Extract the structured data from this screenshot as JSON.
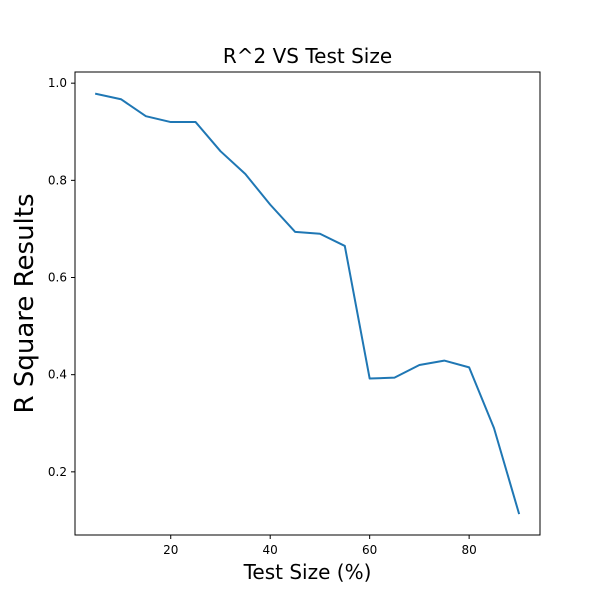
{
  "chart_data": {
    "type": "line",
    "title": "R^2 VS Test Size",
    "xlabel": "Test Size (%)",
    "ylabel": "R Square Results",
    "xlim": [
      0.75,
      94.25
    ],
    "ylim": [
      0.07,
      1.023
    ],
    "x_ticks": [
      20,
      40,
      60,
      80
    ],
    "y_ticks": [
      0.2,
      0.4,
      0.6,
      0.8,
      1.0
    ],
    "x_tick_labels": [
      "20",
      "40",
      "60",
      "80"
    ],
    "y_tick_labels": [
      "0.2",
      "0.4",
      "0.6",
      "0.8",
      "1.0"
    ],
    "grid": false,
    "series": [
      {
        "color": "#1f77b4",
        "x": [
          5,
          10,
          15,
          20,
          25,
          30,
          35,
          40,
          45,
          50,
          55,
          60,
          65,
          70,
          75,
          80,
          85,
          90
        ],
        "y": [
          0.978,
          0.967,
          0.932,
          0.92,
          0.92,
          0.86,
          0.813,
          0.75,
          0.694,
          0.69,
          0.665,
          0.392,
          0.394,
          0.42,
          0.429,
          0.415,
          0.29,
          0.115
        ]
      }
    ]
  }
}
